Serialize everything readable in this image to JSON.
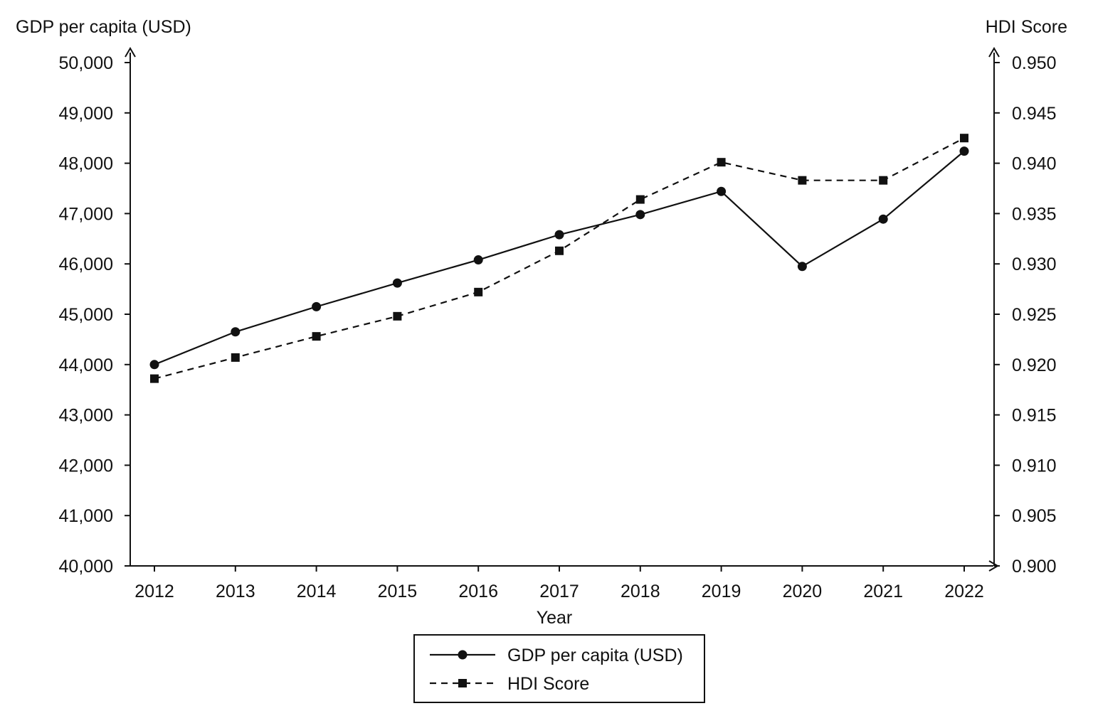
{
  "chart_data": {
    "type": "line",
    "x": [
      "2012",
      "2013",
      "2014",
      "2015",
      "2016",
      "2017",
      "2018",
      "2019",
      "2020",
      "2021",
      "2022"
    ],
    "xlabel": "Year",
    "ylabel_left": "GDP per capita (USD)",
    "ylabel_right": "HDI Score",
    "ylim_left": [
      40000,
      50000
    ],
    "ylim_right": [
      0.9,
      0.95
    ],
    "yticks_left": [
      "40,000",
      "41,000",
      "42,000",
      "43,000",
      "44,000",
      "45,000",
      "46,000",
      "47,000",
      "48,000",
      "49,000",
      "50,000"
    ],
    "yticks_right": [
      "0.900",
      "0.905",
      "0.910",
      "0.915",
      "0.920",
      "0.925",
      "0.930",
      "0.935",
      "0.940",
      "0.945",
      "0.950"
    ],
    "grid": false,
    "legend_position": "bottom-center",
    "series": [
      {
        "name": "GDP per capita (USD)",
        "axis": "left",
        "line_style": "solid",
        "marker": "circle",
        "color": "#111111",
        "values": [
          44000,
          44650,
          45150,
          45620,
          46080,
          46580,
          46980,
          47440,
          45950,
          46890,
          48240
        ]
      },
      {
        "name": "HDI Score",
        "axis": "right",
        "line_style": "dashed",
        "marker": "square",
        "color": "#111111",
        "values": [
          0.9186,
          0.9207,
          0.9228,
          0.9248,
          0.9272,
          0.9313,
          0.9364,
          0.9401,
          0.9383,
          0.9383,
          0.9425
        ]
      }
    ]
  }
}
